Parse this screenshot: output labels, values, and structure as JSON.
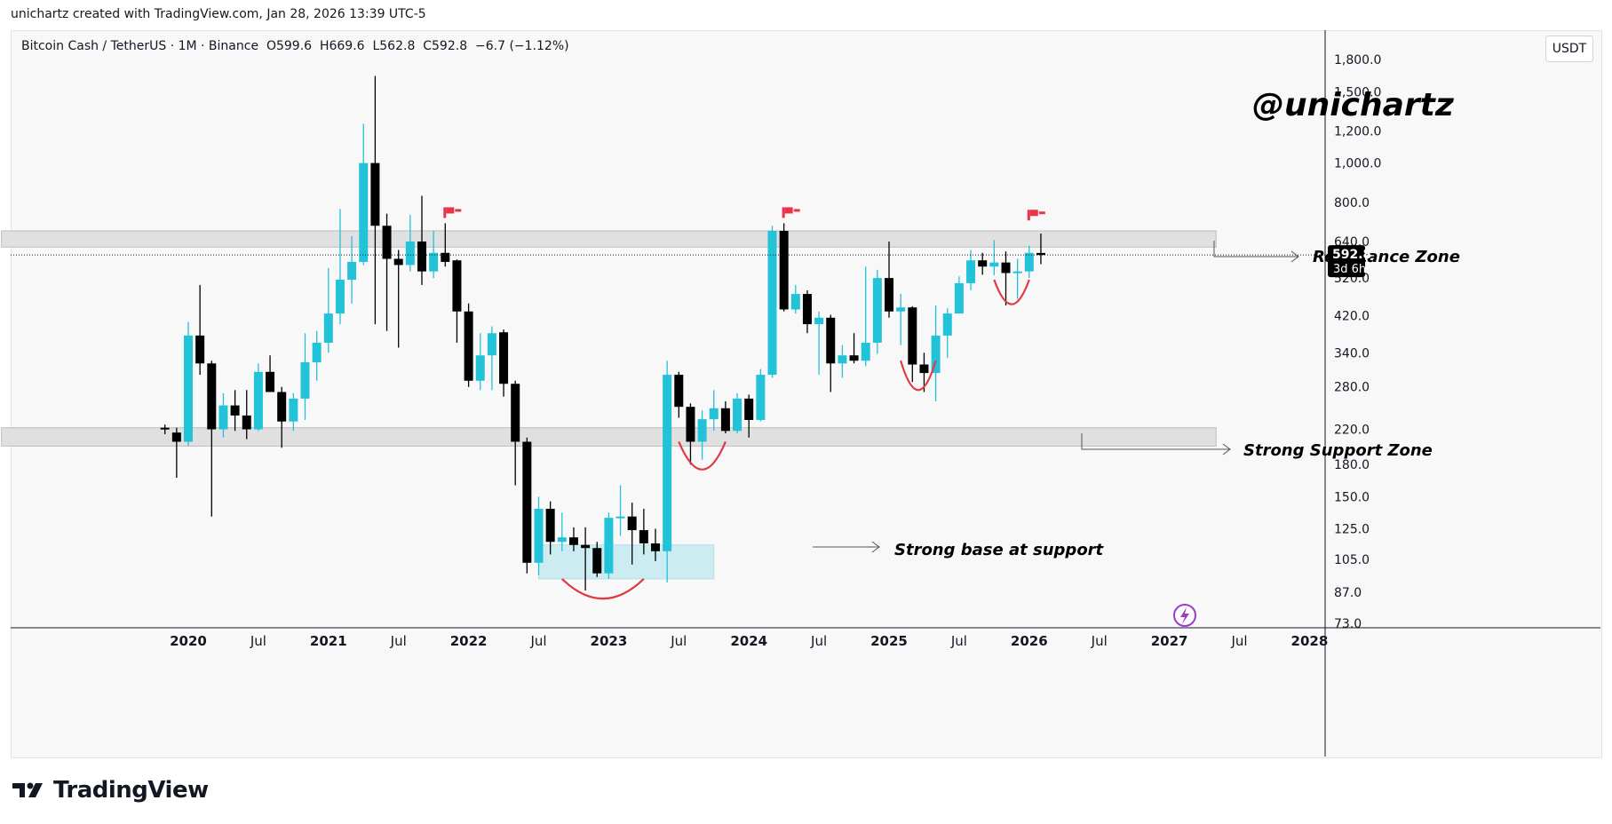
{
  "top_caption": "unichartz created with TradingView.com, Jan 28, 2026 13:39 UTC-5",
  "symbol_header": "Bitcoin Cash / TetherUS · 1M · Binance  O599.6  H669.6  L562.8  C592.8  −6.7 (−1.12%)",
  "watermark": "@unichartz",
  "currency": "USDT",
  "footer_brand": "TradingView",
  "price_label": {
    "value": "592.8",
    "countdown": "3d 6h"
  },
  "annotations": {
    "resistance": "Resistance Zone",
    "support": "Strong Support Zone",
    "base": "Strong base at support"
  },
  "colors": {
    "up": "#22c2d9",
    "down": "#000000",
    "zone": "#e0e0e0",
    "base_zone": "#bfe8f0",
    "curve": "#e03a44",
    "flag": "#e8334a",
    "alert_icon": "#9b3cc9"
  },
  "icons": [
    "flag-icon",
    "lightning-icon",
    "tradingview-logo-icon"
  ],
  "chart_data": {
    "type": "candlestick",
    "title": "",
    "xlabel": "",
    "ylabel": "",
    "y_scale": "log",
    "ylim": [
      65,
      2200
    ],
    "y_ticks": [
      1800,
      1500,
      1200,
      1000,
      800,
      640,
      520,
      420,
      340,
      280,
      220,
      180,
      150,
      125,
      105,
      87,
      73
    ],
    "y_tick_labels": [
      "1,800.0",
      "1,500.0",
      "1,200.0",
      "1,000.0",
      "800.0",
      "640.0",
      "520.0",
      "420.0",
      "340.0",
      "280.0",
      "220.0",
      "180.0",
      "150.0",
      "125.0",
      "105.0",
      "87.0",
      "73.0"
    ],
    "x_ticks": [
      "2020",
      "Jul",
      "2021",
      "Jul",
      "2022",
      "Jul",
      "2023",
      "Jul",
      "2024",
      "Jul",
      "2025",
      "Jul",
      "2026",
      "Jul",
      "2027",
      "Jul",
      "2028"
    ],
    "x_tick_months": [
      "2020-01",
      "2020-07",
      "2021-01",
      "2021-07",
      "2022-01",
      "2022-07",
      "2023-01",
      "2023-07",
      "2024-01",
      "2024-07",
      "2025-01",
      "2025-07",
      "2026-01",
      "2026-07",
      "2027-01",
      "2027-07",
      "2028-01"
    ],
    "zones": [
      {
        "name": "Resistance Zone",
        "from": "2018-09",
        "to": "2027-05",
        "low": 620,
        "high": 680
      },
      {
        "name": "Strong Support Zone",
        "from": "2018-09",
        "to": "2027-05",
        "low": 200,
        "high": 222
      },
      {
        "name": "Strong base at support",
        "from": "2022-07",
        "to": "2023-10",
        "low": 94,
        "high": 114
      }
    ],
    "candles": [
      {
        "t": "2019-11",
        "o": 222,
        "h": 226,
        "l": 214,
        "c": 220
      },
      {
        "t": "2019-12",
        "o": 216,
        "h": 222,
        "l": 167,
        "c": 205
      },
      {
        "t": "2020-01",
        "o": 205,
        "h": 405,
        "l": 200,
        "c": 375
      },
      {
        "t": "2020-02",
        "o": 375,
        "h": 500,
        "l": 300,
        "c": 320
      },
      {
        "t": "2020-03",
        "o": 320,
        "h": 325,
        "l": 134,
        "c": 220
      },
      {
        "t": "2020-04",
        "o": 220,
        "h": 270,
        "l": 210,
        "c": 252
      },
      {
        "t": "2020-05",
        "o": 252,
        "h": 275,
        "l": 218,
        "c": 238
      },
      {
        "t": "2020-06",
        "o": 238,
        "h": 275,
        "l": 208,
        "c": 220
      },
      {
        "t": "2020-07",
        "o": 220,
        "h": 320,
        "l": 218,
        "c": 305
      },
      {
        "t": "2020-08",
        "o": 305,
        "h": 335,
        "l": 272,
        "c": 272
      },
      {
        "t": "2020-09",
        "o": 272,
        "h": 280,
        "l": 198,
        "c": 230
      },
      {
        "t": "2020-10",
        "o": 230,
        "h": 270,
        "l": 218,
        "c": 262
      },
      {
        "t": "2020-11",
        "o": 262,
        "h": 380,
        "l": 232,
        "c": 322
      },
      {
        "t": "2020-12",
        "o": 322,
        "h": 385,
        "l": 290,
        "c": 360
      },
      {
        "t": "2021-01",
        "o": 360,
        "h": 550,
        "l": 340,
        "c": 425
      },
      {
        "t": "2021-02",
        "o": 425,
        "h": 770,
        "l": 400,
        "c": 515
      },
      {
        "t": "2021-03",
        "o": 515,
        "h": 660,
        "l": 450,
        "c": 570
      },
      {
        "t": "2021-04",
        "o": 570,
        "h": 1250,
        "l": 560,
        "c": 1000
      },
      {
        "t": "2021-05",
        "o": 1000,
        "h": 1640,
        "l": 400,
        "c": 700
      },
      {
        "t": "2021-06",
        "o": 700,
        "h": 750,
        "l": 385,
        "c": 580
      },
      {
        "t": "2021-07",
        "o": 580,
        "h": 610,
        "l": 350,
        "c": 560
      },
      {
        "t": "2021-08",
        "o": 560,
        "h": 745,
        "l": 540,
        "c": 640
      },
      {
        "t": "2021-09",
        "o": 640,
        "h": 830,
        "l": 500,
        "c": 540
      },
      {
        "t": "2021-10",
        "o": 540,
        "h": 680,
        "l": 520,
        "c": 600
      },
      {
        "t": "2021-11",
        "o": 600,
        "h": 710,
        "l": 555,
        "c": 570
      },
      {
        "t": "2021-12",
        "o": 575,
        "h": 578,
        "l": 360,
        "c": 430
      },
      {
        "t": "2022-01",
        "o": 430,
        "h": 450,
        "l": 280,
        "c": 290
      },
      {
        "t": "2022-02",
        "o": 290,
        "h": 380,
        "l": 275,
        "c": 335
      },
      {
        "t": "2022-03",
        "o": 335,
        "h": 395,
        "l": 275,
        "c": 380
      },
      {
        "t": "2022-04",
        "o": 382,
        "h": 388,
        "l": 265,
        "c": 285
      },
      {
        "t": "2022-05",
        "o": 285,
        "h": 290,
        "l": 160,
        "c": 205
      },
      {
        "t": "2022-06",
        "o": 205,
        "h": 210,
        "l": 97,
        "c": 103
      },
      {
        "t": "2022-07",
        "o": 103,
        "h": 150,
        "l": 96,
        "c": 140
      },
      {
        "t": "2022-08",
        "o": 140,
        "h": 146,
        "l": 108,
        "c": 116
      },
      {
        "t": "2022-09",
        "o": 116,
        "h": 137,
        "l": 110,
        "c": 119
      },
      {
        "t": "2022-10",
        "o": 119,
        "h": 126,
        "l": 110,
        "c": 114
      },
      {
        "t": "2022-11",
        "o": 114,
        "h": 126,
        "l": 88,
        "c": 112
      },
      {
        "t": "2022-12",
        "o": 112,
        "h": 116,
        "l": 95,
        "c": 97
      },
      {
        "t": "2023-01",
        "o": 97,
        "h": 137,
        "l": 94,
        "c": 133
      },
      {
        "t": "2023-02",
        "o": 133,
        "h": 160,
        "l": 120,
        "c": 134
      },
      {
        "t": "2023-03",
        "o": 134,
        "h": 145,
        "l": 102,
        "c": 124
      },
      {
        "t": "2023-04",
        "o": 124,
        "h": 140,
        "l": 108,
        "c": 115
      },
      {
        "t": "2023-05",
        "o": 115,
        "h": 125,
        "l": 104,
        "c": 110
      },
      {
        "t": "2023-06",
        "o": 110,
        "h": 325,
        "l": 92,
        "c": 300
      },
      {
        "t": "2023-07",
        "o": 300,
        "h": 305,
        "l": 235,
        "c": 250
      },
      {
        "t": "2023-08",
        "o": 250,
        "h": 255,
        "l": 180,
        "c": 205
      },
      {
        "t": "2023-09",
        "o": 205,
        "h": 245,
        "l": 185,
        "c": 233
      },
      {
        "t": "2023-10",
        "o": 233,
        "h": 275,
        "l": 218,
        "c": 248
      },
      {
        "t": "2023-11",
        "o": 248,
        "h": 258,
        "l": 215,
        "c": 218
      },
      {
        "t": "2023-12",
        "o": 218,
        "h": 270,
        "l": 215,
        "c": 262
      },
      {
        "t": "2024-01",
        "o": 262,
        "h": 268,
        "l": 210,
        "c": 232
      },
      {
        "t": "2024-02",
        "o": 232,
        "h": 310,
        "l": 230,
        "c": 300
      },
      {
        "t": "2024-03",
        "o": 300,
        "h": 700,
        "l": 295,
        "c": 680
      },
      {
        "t": "2024-04",
        "o": 680,
        "h": 710,
        "l": 430,
        "c": 435
      },
      {
        "t": "2024-05",
        "o": 435,
        "h": 500,
        "l": 425,
        "c": 475
      },
      {
        "t": "2024-06",
        "o": 475,
        "h": 485,
        "l": 380,
        "c": 400
      },
      {
        "t": "2024-07",
        "o": 400,
        "h": 430,
        "l": 300,
        "c": 415
      },
      {
        "t": "2024-08",
        "o": 415,
        "h": 422,
        "l": 272,
        "c": 320
      },
      {
        "t": "2024-09",
        "o": 320,
        "h": 355,
        "l": 295,
        "c": 335
      },
      {
        "t": "2024-10",
        "o": 335,
        "h": 380,
        "l": 320,
        "c": 325
      },
      {
        "t": "2024-11",
        "o": 325,
        "h": 555,
        "l": 315,
        "c": 360
      },
      {
        "t": "2024-12",
        "o": 360,
        "h": 545,
        "l": 338,
        "c": 520
      },
      {
        "t": "2025-01",
        "o": 520,
        "h": 640,
        "l": 415,
        "c": 430
      },
      {
        "t": "2025-02",
        "o": 430,
        "h": 475,
        "l": 355,
        "c": 440
      },
      {
        "t": "2025-03",
        "o": 440,
        "h": 443,
        "l": 288,
        "c": 318
      },
      {
        "t": "2025-04",
        "o": 318,
        "h": 340,
        "l": 272,
        "c": 303
      },
      {
        "t": "2025-05",
        "o": 303,
        "h": 445,
        "l": 258,
        "c": 375
      },
      {
        "t": "2025-06",
        "o": 375,
        "h": 438,
        "l": 330,
        "c": 425
      },
      {
        "t": "2025-07",
        "o": 425,
        "h": 525,
        "l": 425,
        "c": 505
      },
      {
        "t": "2025-08",
        "o": 505,
        "h": 610,
        "l": 485,
        "c": 575
      },
      {
        "t": "2025-09",
        "o": 575,
        "h": 600,
        "l": 530,
        "c": 555
      },
      {
        "t": "2025-10",
        "o": 555,
        "h": 645,
        "l": 528,
        "c": 568
      },
      {
        "t": "2025-11",
        "o": 568,
        "h": 605,
        "l": 445,
        "c": 535
      },
      {
        "t": "2025-12",
        "o": 535,
        "h": 580,
        "l": 462,
        "c": 540
      },
      {
        "t": "2026-01",
        "o": 540,
        "h": 625,
        "l": 520,
        "c": 600
      },
      {
        "t": "2026-02",
        "o": 599.6,
        "h": 669.6,
        "l": 562.8,
        "c": 592.8
      }
    ],
    "current_price": 592.8
  }
}
